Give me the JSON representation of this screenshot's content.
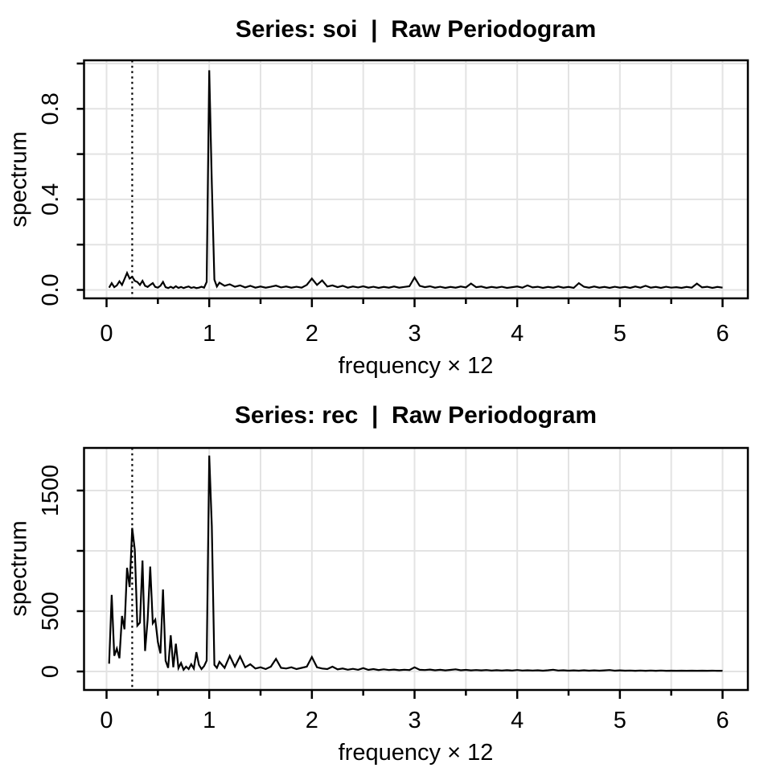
{
  "figure": {
    "background": "#ffffff",
    "colors": {
      "line": "#000000",
      "grid": "#e3e3e3",
      "box": "#000000",
      "text": "#000000",
      "vline": "#000000"
    }
  },
  "chart_data": [
    {
      "type": "line",
      "series_name": "soi raw periodogram",
      "title": "Series: soi  |  Raw Periodogram",
      "xlabel": "frequency × 12",
      "ylabel": "spectrum",
      "xlim": [
        0,
        6
      ],
      "ylim": [
        0,
        1.0
      ],
      "grid": true,
      "vline_x": 0.25,
      "vline_style": "dotted",
      "x_ticks": [
        0,
        0.5,
        1,
        1.5,
        2,
        2.5,
        3,
        3.5,
        4,
        4.5,
        5,
        5.5,
        6
      ],
      "x_tick_labels": [
        "0",
        "",
        "1",
        "",
        "2",
        "",
        "3",
        "",
        "4",
        "",
        "5",
        "",
        "6"
      ],
      "y_ticks": [
        0,
        0.2,
        0.4,
        0.6,
        0.8,
        1.0
      ],
      "y_tick_labels": [
        "0.0",
        "",
        "0.4",
        "",
        "0.8",
        ""
      ],
      "points": [
        [
          0.025,
          0.01
        ],
        [
          0.05,
          0.03
        ],
        [
          0.075,
          0.012
        ],
        [
          0.1,
          0.02
        ],
        [
          0.125,
          0.038
        ],
        [
          0.15,
          0.022
        ],
        [
          0.175,
          0.048
        ],
        [
          0.2,
          0.075
        ],
        [
          0.225,
          0.05
        ],
        [
          0.25,
          0.058
        ],
        [
          0.275,
          0.04
        ],
        [
          0.3,
          0.035
        ],
        [
          0.325,
          0.022
        ],
        [
          0.35,
          0.04
        ],
        [
          0.375,
          0.018
        ],
        [
          0.4,
          0.013
        ],
        [
          0.425,
          0.022
        ],
        [
          0.45,
          0.03
        ],
        [
          0.475,
          0.013
        ],
        [
          0.5,
          0.01
        ],
        [
          0.525,
          0.018
        ],
        [
          0.55,
          0.035
        ],
        [
          0.575,
          0.012
        ],
        [
          0.6,
          0.008
        ],
        [
          0.625,
          0.014
        ],
        [
          0.65,
          0.008
        ],
        [
          0.675,
          0.016
        ],
        [
          0.7,
          0.009
        ],
        [
          0.725,
          0.013
        ],
        [
          0.75,
          0.008
        ],
        [
          0.775,
          0.012
        ],
        [
          0.8,
          0.015
        ],
        [
          0.825,
          0.009
        ],
        [
          0.85,
          0.012
        ],
        [
          0.875,
          0.008
        ],
        [
          0.9,
          0.01
        ],
        [
          0.925,
          0.014
        ],
        [
          0.95,
          0.01
        ],
        [
          0.975,
          0.035
        ],
        [
          1.0,
          0.97
        ],
        [
          1.025,
          0.47
        ],
        [
          1.05,
          0.045
        ],
        [
          1.075,
          0.015
        ],
        [
          1.1,
          0.032
        ],
        [
          1.15,
          0.018
        ],
        [
          1.2,
          0.025
        ],
        [
          1.25,
          0.014
        ],
        [
          1.3,
          0.02
        ],
        [
          1.35,
          0.011
        ],
        [
          1.4,
          0.018
        ],
        [
          1.45,
          0.01
        ],
        [
          1.5,
          0.015
        ],
        [
          1.55,
          0.01
        ],
        [
          1.6,
          0.014
        ],
        [
          1.65,
          0.019
        ],
        [
          1.7,
          0.011
        ],
        [
          1.75,
          0.015
        ],
        [
          1.8,
          0.01
        ],
        [
          1.85,
          0.014
        ],
        [
          1.9,
          0.01
        ],
        [
          1.95,
          0.022
        ],
        [
          2.0,
          0.05
        ],
        [
          2.05,
          0.022
        ],
        [
          2.1,
          0.042
        ],
        [
          2.15,
          0.015
        ],
        [
          2.2,
          0.02
        ],
        [
          2.25,
          0.012
        ],
        [
          2.3,
          0.018
        ],
        [
          2.35,
          0.01
        ],
        [
          2.4,
          0.015
        ],
        [
          2.45,
          0.011
        ],
        [
          2.5,
          0.016
        ],
        [
          2.55,
          0.01
        ],
        [
          2.6,
          0.014
        ],
        [
          2.65,
          0.009
        ],
        [
          2.7,
          0.013
        ],
        [
          2.75,
          0.01
        ],
        [
          2.8,
          0.015
        ],
        [
          2.85,
          0.01
        ],
        [
          2.9,
          0.013
        ],
        [
          2.95,
          0.016
        ],
        [
          3.0,
          0.055
        ],
        [
          3.05,
          0.018
        ],
        [
          3.1,
          0.012
        ],
        [
          3.15,
          0.016
        ],
        [
          3.2,
          0.01
        ],
        [
          3.25,
          0.014
        ],
        [
          3.3,
          0.009
        ],
        [
          3.35,
          0.013
        ],
        [
          3.4,
          0.01
        ],
        [
          3.45,
          0.015
        ],
        [
          3.5,
          0.011
        ],
        [
          3.55,
          0.028
        ],
        [
          3.6,
          0.012
        ],
        [
          3.65,
          0.015
        ],
        [
          3.7,
          0.009
        ],
        [
          3.75,
          0.013
        ],
        [
          3.8,
          0.01
        ],
        [
          3.85,
          0.014
        ],
        [
          3.9,
          0.009
        ],
        [
          3.95,
          0.012
        ],
        [
          4.0,
          0.015
        ],
        [
          4.05,
          0.01
        ],
        [
          4.1,
          0.02
        ],
        [
          4.15,
          0.011
        ],
        [
          4.2,
          0.014
        ],
        [
          4.25,
          0.009
        ],
        [
          4.3,
          0.013
        ],
        [
          4.35,
          0.01
        ],
        [
          4.4,
          0.015
        ],
        [
          4.45,
          0.01
        ],
        [
          4.5,
          0.013
        ],
        [
          4.55,
          0.009
        ],
        [
          4.6,
          0.03
        ],
        [
          4.65,
          0.014
        ],
        [
          4.7,
          0.01
        ],
        [
          4.75,
          0.015
        ],
        [
          4.8,
          0.01
        ],
        [
          4.85,
          0.013
        ],
        [
          4.9,
          0.009
        ],
        [
          4.95,
          0.014
        ],
        [
          5.0,
          0.01
        ],
        [
          5.05,
          0.013
        ],
        [
          5.1,
          0.009
        ],
        [
          5.15,
          0.015
        ],
        [
          5.2,
          0.01
        ],
        [
          5.25,
          0.018
        ],
        [
          5.3,
          0.01
        ],
        [
          5.35,
          0.013
        ],
        [
          5.4,
          0.009
        ],
        [
          5.45,
          0.014
        ],
        [
          5.5,
          0.01
        ],
        [
          5.55,
          0.012
        ],
        [
          5.6,
          0.009
        ],
        [
          5.65,
          0.013
        ],
        [
          5.7,
          0.01
        ],
        [
          5.75,
          0.028
        ],
        [
          5.8,
          0.011
        ],
        [
          5.85,
          0.014
        ],
        [
          5.9,
          0.009
        ],
        [
          5.95,
          0.013
        ],
        [
          6.0,
          0.01
        ]
      ]
    },
    {
      "type": "line",
      "series_name": "rec raw periodogram",
      "title": "Series: rec  |  Raw Periodogram",
      "xlabel": "frequency × 12",
      "ylabel": "spectrum",
      "xlim": [
        0,
        6
      ],
      "ylim": [
        0,
        1850
      ],
      "grid": true,
      "vline_x": 0.25,
      "vline_style": "dotted",
      "x_ticks": [
        0,
        0.5,
        1,
        1.5,
        2,
        2.5,
        3,
        3.5,
        4,
        4.5,
        5,
        5.5,
        6
      ],
      "x_tick_labels": [
        "0",
        "",
        "1",
        "",
        "2",
        "",
        "3",
        "",
        "4",
        "",
        "5",
        "",
        "6"
      ],
      "y_ticks": [
        0,
        500,
        1000,
        1500
      ],
      "y_tick_labels": [
        "0",
        "500",
        "",
        "1500"
      ],
      "points": [
        [
          0.025,
          65
        ],
        [
          0.05,
          635
        ],
        [
          0.075,
          130
        ],
        [
          0.1,
          190
        ],
        [
          0.125,
          110
        ],
        [
          0.15,
          460
        ],
        [
          0.175,
          350
        ],
        [
          0.2,
          860
        ],
        [
          0.225,
          700
        ],
        [
          0.25,
          1190
        ],
        [
          0.275,
          1010
        ],
        [
          0.3,
          380
        ],
        [
          0.325,
          405
        ],
        [
          0.35,
          920
        ],
        [
          0.375,
          170
        ],
        [
          0.4,
          430
        ],
        [
          0.425,
          870
        ],
        [
          0.45,
          400
        ],
        [
          0.475,
          430
        ],
        [
          0.5,
          245
        ],
        [
          0.525,
          150
        ],
        [
          0.55,
          680
        ],
        [
          0.575,
          90
        ],
        [
          0.6,
          30
        ],
        [
          0.625,
          300
        ],
        [
          0.65,
          35
        ],
        [
          0.675,
          230
        ],
        [
          0.7,
          28
        ],
        [
          0.725,
          70
        ],
        [
          0.75,
          15
        ],
        [
          0.775,
          40
        ],
        [
          0.8,
          20
        ],
        [
          0.825,
          60
        ],
        [
          0.85,
          25
        ],
        [
          0.875,
          160
        ],
        [
          0.9,
          55
        ],
        [
          0.925,
          20
        ],
        [
          0.95,
          45
        ],
        [
          0.975,
          90
        ],
        [
          1.0,
          1790
        ],
        [
          1.025,
          1205
        ],
        [
          1.05,
          55
        ],
        [
          1.075,
          30
        ],
        [
          1.1,
          80
        ],
        [
          1.15,
          30
        ],
        [
          1.2,
          130
        ],
        [
          1.25,
          40
        ],
        [
          1.3,
          125
        ],
        [
          1.35,
          35
        ],
        [
          1.4,
          60
        ],
        [
          1.45,
          25
        ],
        [
          1.5,
          35
        ],
        [
          1.55,
          20
        ],
        [
          1.6,
          40
        ],
        [
          1.65,
          105
        ],
        [
          1.7,
          30
        ],
        [
          1.75,
          25
        ],
        [
          1.8,
          35
        ],
        [
          1.85,
          20
        ],
        [
          1.9,
          30
        ],
        [
          1.95,
          40
        ],
        [
          2.0,
          120
        ],
        [
          2.05,
          35
        ],
        [
          2.1,
          25
        ],
        [
          2.15,
          20
        ],
        [
          2.2,
          40
        ],
        [
          2.25,
          18
        ],
        [
          2.3,
          25
        ],
        [
          2.35,
          15
        ],
        [
          2.4,
          22
        ],
        [
          2.45,
          14
        ],
        [
          2.5,
          28
        ],
        [
          2.55,
          13
        ],
        [
          2.6,
          20
        ],
        [
          2.65,
          12
        ],
        [
          2.7,
          18
        ],
        [
          2.75,
          12
        ],
        [
          2.8,
          16
        ],
        [
          2.85,
          11
        ],
        [
          2.9,
          15
        ],
        [
          2.95,
          12
        ],
        [
          3.0,
          35
        ],
        [
          3.05,
          14
        ],
        [
          3.1,
          12
        ],
        [
          3.15,
          16
        ],
        [
          3.2,
          10
        ],
        [
          3.25,
          14
        ],
        [
          3.3,
          9
        ],
        [
          3.35,
          13
        ],
        [
          3.4,
          18
        ],
        [
          3.45,
          10
        ],
        [
          3.5,
          13
        ],
        [
          3.55,
          9
        ],
        [
          3.6,
          12
        ],
        [
          3.65,
          9
        ],
        [
          3.7,
          12
        ],
        [
          3.75,
          8
        ],
        [
          3.8,
          11
        ],
        [
          3.85,
          8
        ],
        [
          3.9,
          11
        ],
        [
          3.95,
          8
        ],
        [
          4.0,
          12
        ],
        [
          4.05,
          8
        ],
        [
          4.1,
          10
        ],
        [
          4.15,
          8
        ],
        [
          4.2,
          10
        ],
        [
          4.25,
          7
        ],
        [
          4.3,
          10
        ],
        [
          4.35,
          15
        ],
        [
          4.4,
          8
        ],
        [
          4.45,
          10
        ],
        [
          4.5,
          7
        ],
        [
          4.55,
          9
        ],
        [
          4.6,
          7
        ],
        [
          4.65,
          10
        ],
        [
          4.7,
          7
        ],
        [
          4.75,
          9
        ],
        [
          4.8,
          7
        ],
        [
          4.85,
          9
        ],
        [
          4.9,
          12
        ],
        [
          4.95,
          7
        ],
        [
          5.0,
          9
        ],
        [
          5.05,
          7
        ],
        [
          5.1,
          8
        ],
        [
          5.15,
          6
        ],
        [
          5.2,
          8
        ],
        [
          5.25,
          6
        ],
        [
          5.3,
          8
        ],
        [
          5.35,
          6
        ],
        [
          5.4,
          8
        ],
        [
          5.45,
          6
        ],
        [
          5.5,
          7
        ],
        [
          5.55,
          6
        ],
        [
          5.6,
          7
        ],
        [
          5.65,
          6
        ],
        [
          5.7,
          7
        ],
        [
          5.75,
          6
        ],
        [
          5.8,
          7
        ],
        [
          5.85,
          6
        ],
        [
          5.9,
          7
        ],
        [
          5.95,
          6
        ],
        [
          6.0,
          6
        ]
      ]
    }
  ]
}
